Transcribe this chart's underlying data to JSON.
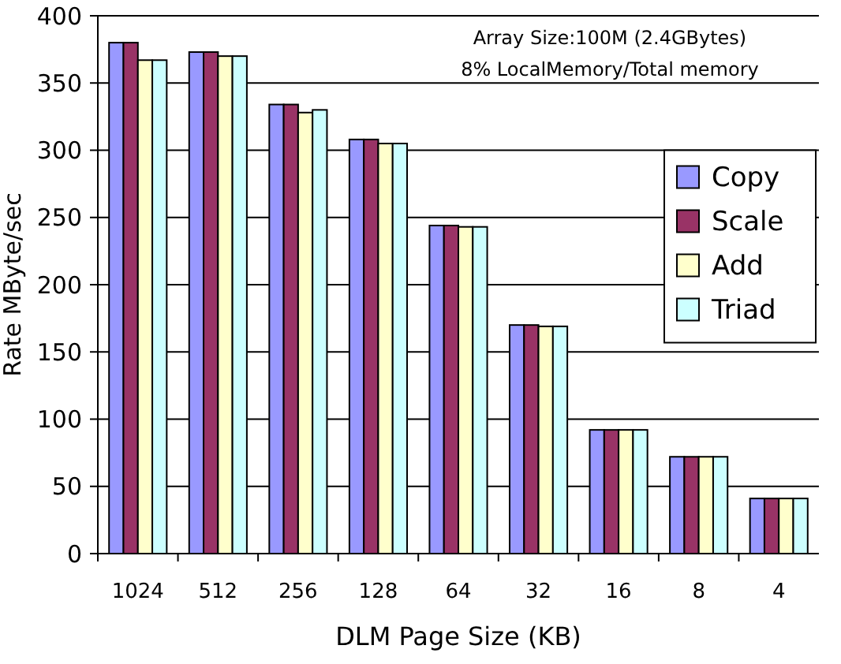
{
  "chart_data": {
    "type": "bar",
    "xlabel": "DLM Page Size (KB)",
    "ylabel": "Rate MByte/sec",
    "annotations": [
      "Array Size:100M (2.4GBytes)",
      "8% LocalMemory/Total memory"
    ],
    "categories": [
      "1024",
      "512",
      "256",
      "128",
      "64",
      "32",
      "16",
      "8",
      "4"
    ],
    "series": [
      {
        "name": "Copy",
        "color": "#9999ff",
        "values": [
          380,
          373,
          334,
          308,
          244,
          170,
          92,
          72,
          41
        ]
      },
      {
        "name": "Scale",
        "color": "#993366",
        "values": [
          380,
          373,
          334,
          308,
          244,
          170,
          92,
          72,
          41
        ]
      },
      {
        "name": "Add",
        "color": "#ffffcc",
        "values": [
          367,
          370,
          328,
          305,
          243,
          169,
          92,
          72,
          41
        ]
      },
      {
        "name": "Triad",
        "color": "#ccffff",
        "values": [
          367,
          370,
          330,
          305,
          243,
          169,
          92,
          72,
          41
        ]
      }
    ],
    "ylim": [
      0,
      400
    ],
    "yticks": [
      0,
      50,
      100,
      150,
      200,
      250,
      300,
      350,
      400
    ],
    "grid": "y",
    "legend": "right"
  }
}
